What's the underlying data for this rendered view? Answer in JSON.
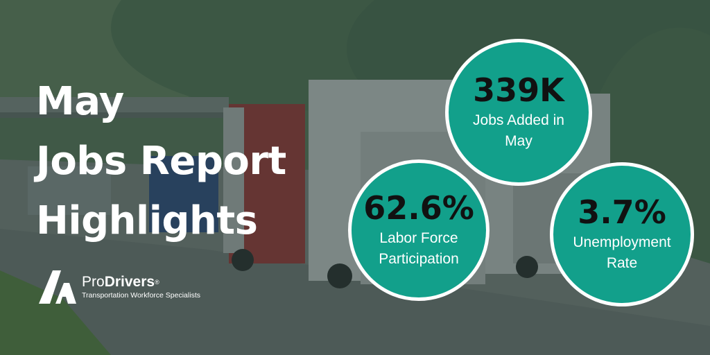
{
  "headline": {
    "line1": "May",
    "line2": "Jobs Report",
    "line3": "Highlights"
  },
  "stats": [
    {
      "value": "339K",
      "label_line1": "Jobs Added in",
      "label_line2": "May"
    },
    {
      "value": "62.6%",
      "label_line1": "Labor Force",
      "label_line2": "Participation"
    },
    {
      "value": "3.7%",
      "label_line1": "Unemployment",
      "label_line2": "Rate"
    }
  ],
  "logo": {
    "name_pro": "Pro",
    "name_drivers": "Drivers",
    "registered": "®",
    "tagline": "Transportation Workforce Specialists"
  },
  "colors": {
    "circle_fill": "#12a08b",
    "circle_border": "#ffffff",
    "overlay": "#263a36",
    "text_light": "#ffffff",
    "text_dark": "#111111"
  },
  "icons": {
    "logo_mark": "road-chevron-logo-icon"
  }
}
